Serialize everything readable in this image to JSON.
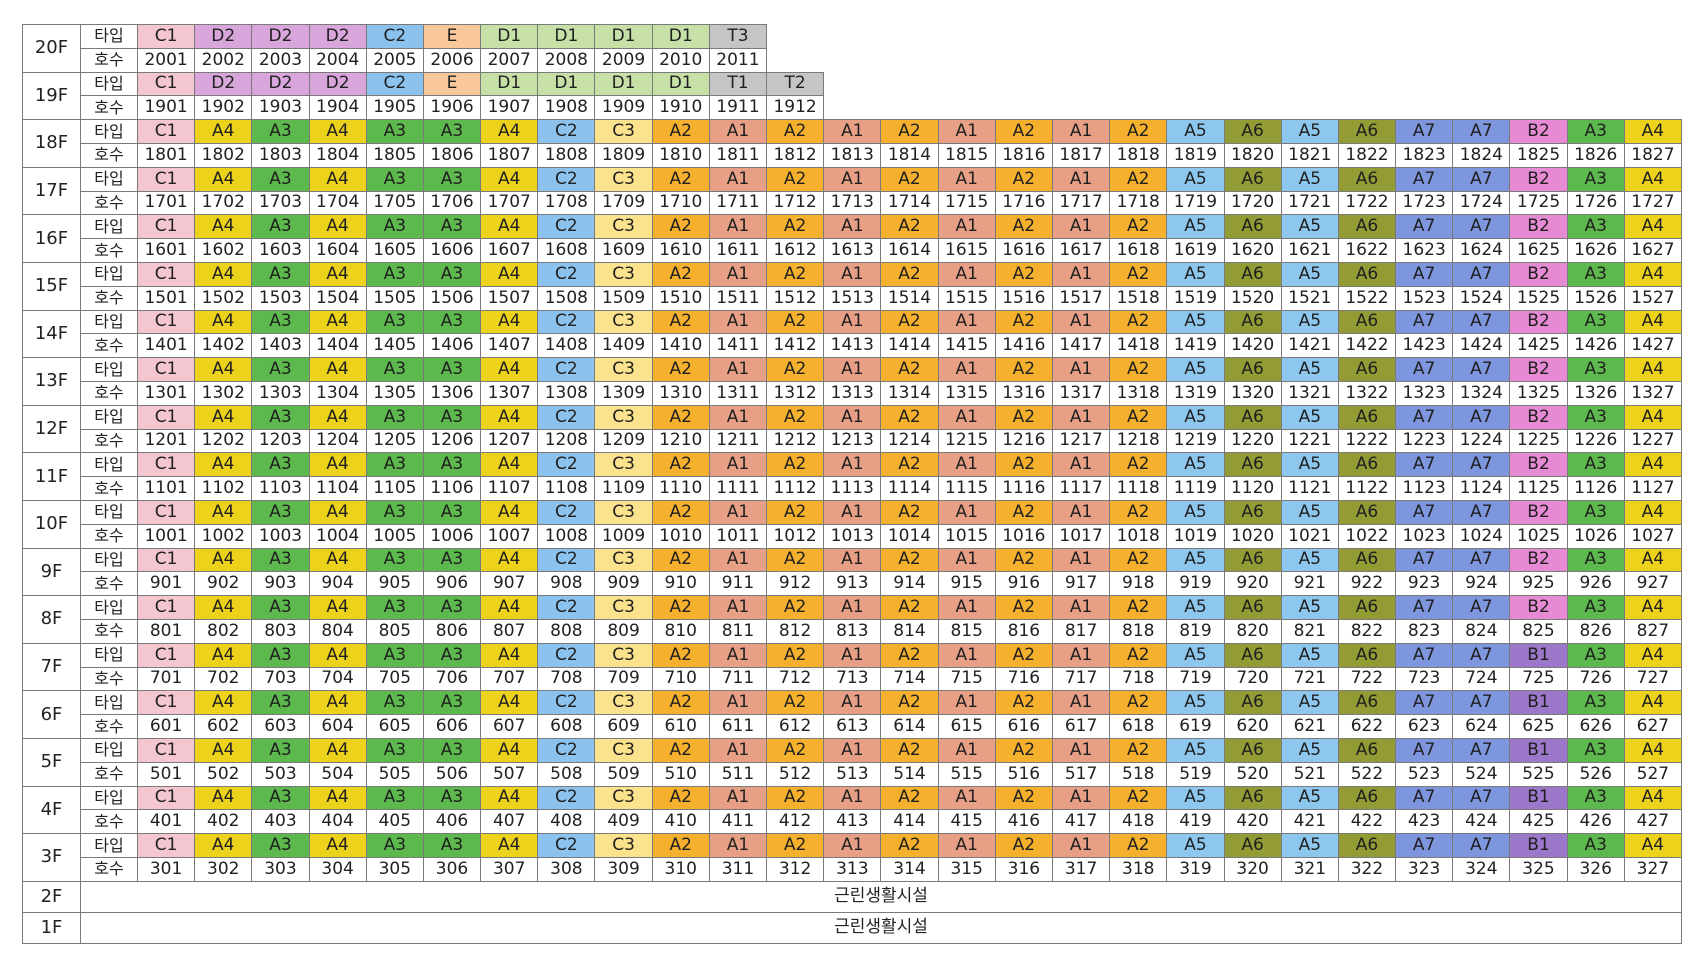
{
  "row_labels": {
    "type": "타입",
    "unit": "호수"
  },
  "type_colors": {
    "C1": "#f4c6cf",
    "D2": "#d9a6dc",
    "C2": "#8cc3ee",
    "E": "#f8c79a",
    "D1": "#c6e0a8",
    "T1": "#c5c5c5",
    "T2": "#c5c5c5",
    "T3": "#c5c5c5",
    "A1": "#e7a085",
    "A2": "#f5b12d",
    "A3": "#5db94d",
    "A4": "#ecd21b",
    "A5": "#8ec7ee",
    "A6": "#939b35",
    "A7": "#7e96de",
    "B1": "#9b78c9",
    "B2": "#e68ad3",
    "C3": "#fbe28c"
  },
  "typical_pattern": [
    "C1",
    "A4",
    "A3",
    "A4",
    "A3",
    "A3",
    "A4",
    "C2",
    "C3",
    "A2",
    "A1",
    "A2",
    "A1",
    "A2",
    "A1",
    "A2",
    "A1",
    "A2",
    "A5",
    "A6",
    "A5",
    "A6",
    "A7",
    "A7",
    "B2",
    "A3",
    "A4"
  ],
  "floors": [
    {
      "label": "20F",
      "types": [
        "C1",
        "D2",
        "D2",
        "D2",
        "C2",
        "E",
        "D1",
        "D1",
        "D1",
        "D1",
        "T3"
      ],
      "units": [
        "2001",
        "2002",
        "2003",
        "2004",
        "2005",
        "2006",
        "2007",
        "2008",
        "2009",
        "2010",
        "2011"
      ]
    },
    {
      "label": "19F",
      "types": [
        "C1",
        "D2",
        "D2",
        "D2",
        "C2",
        "E",
        "D1",
        "D1",
        "D1",
        "D1",
        "T1",
        "T2"
      ],
      "units": [
        "1901",
        "1902",
        "1903",
        "1904",
        "1905",
        "1906",
        "1907",
        "1908",
        "1909",
        "1910",
        "1911",
        "1912"
      ]
    },
    {
      "label": "18F",
      "num": 18,
      "b": "B2"
    },
    {
      "label": "17F",
      "num": 17,
      "b": "B2"
    },
    {
      "label": "16F",
      "num": 16,
      "b": "B2"
    },
    {
      "label": "15F",
      "num": 15,
      "b": "B2"
    },
    {
      "label": "14F",
      "num": 14,
      "b": "B2"
    },
    {
      "label": "13F",
      "num": 13,
      "b": "B2"
    },
    {
      "label": "12F",
      "num": 12,
      "b": "B2"
    },
    {
      "label": "11F",
      "num": 11,
      "b": "B2"
    },
    {
      "label": "10F",
      "num": 10,
      "b": "B2"
    },
    {
      "label": "9F",
      "num": 9,
      "b": "B2"
    },
    {
      "label": "8F",
      "num": 8,
      "b": "B2"
    },
    {
      "label": "7F",
      "num": 7,
      "b": "B1"
    },
    {
      "label": "6F",
      "num": 6,
      "b": "B1"
    },
    {
      "label": "5F",
      "num": 5,
      "b": "B1"
    },
    {
      "label": "4F",
      "num": 4,
      "b": "B1"
    },
    {
      "label": "3F",
      "num": 3,
      "b": "B1"
    }
  ],
  "facility_floors": [
    {
      "label": "2F",
      "text": "근린생활시설"
    },
    {
      "label": "1F",
      "text": "근린생활시설"
    }
  ]
}
